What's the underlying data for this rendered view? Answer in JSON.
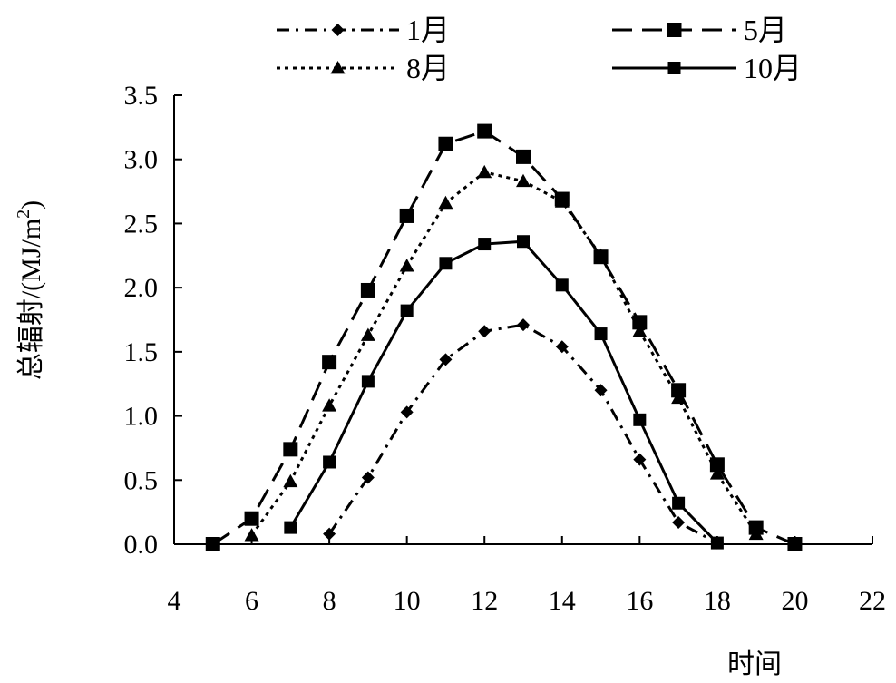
{
  "chart_data": {
    "type": "line",
    "xlabel": "时间",
    "ylabel_main": "总辐射/(MJ/m",
    "ylabel_sup": "2",
    "ylabel_close": ")",
    "xlim": [
      4,
      22
    ],
    "ylim": [
      0,
      3.5
    ],
    "x_ticks": [
      "4",
      "6",
      "8",
      "10",
      "12",
      "14",
      "16",
      "18",
      "20",
      "22"
    ],
    "y_ticks": [
      "0.0",
      "0.5",
      "1.0",
      "1.5",
      "2.0",
      "2.5",
      "3.0",
      "3.5"
    ],
    "grid": false,
    "legend_position": "top",
    "series": [
      {
        "name": "1月",
        "marker": "diamond",
        "line_style": "dash-dot",
        "color": "#000000",
        "points": [
          {
            "x": 8,
            "y": 0.08
          },
          {
            "x": 9,
            "y": 0.52
          },
          {
            "x": 10,
            "y": 1.03
          },
          {
            "x": 11,
            "y": 1.44
          },
          {
            "x": 12,
            "y": 1.66
          },
          {
            "x": 13,
            "y": 1.71
          },
          {
            "x": 14,
            "y": 1.54
          },
          {
            "x": 15,
            "y": 1.2
          },
          {
            "x": 16,
            "y": 0.66
          },
          {
            "x": 17,
            "y": 0.17
          },
          {
            "x": 18,
            "y": 0.01
          }
        ]
      },
      {
        "name": "5月",
        "marker": "square-large",
        "line_style": "dashed",
        "color": "#000000",
        "points": [
          {
            "x": 5,
            "y": 0.0
          },
          {
            "x": 6,
            "y": 0.2
          },
          {
            "x": 7,
            "y": 0.74
          },
          {
            "x": 8,
            "y": 1.42
          },
          {
            "x": 9,
            "y": 1.98
          },
          {
            "x": 10,
            "y": 2.56
          },
          {
            "x": 11,
            "y": 3.12
          },
          {
            "x": 12,
            "y": 3.22
          },
          {
            "x": 13,
            "y": 3.02
          },
          {
            "x": 14,
            "y": 2.69
          },
          {
            "x": 15,
            "y": 2.24
          },
          {
            "x": 16,
            "y": 1.73
          },
          {
            "x": 17,
            "y": 1.2
          },
          {
            "x": 18,
            "y": 0.62
          },
          {
            "x": 19,
            "y": 0.13
          },
          {
            "x": 20,
            "y": 0.0
          }
        ]
      },
      {
        "name": "8月",
        "marker": "triangle",
        "line_style": "dotted",
        "color": "#000000",
        "points": [
          {
            "x": 6,
            "y": 0.07
          },
          {
            "x": 7,
            "y": 0.49
          },
          {
            "x": 8,
            "y": 1.08
          },
          {
            "x": 9,
            "y": 1.63
          },
          {
            "x": 10,
            "y": 2.17
          },
          {
            "x": 11,
            "y": 2.66
          },
          {
            "x": 12,
            "y": 2.9
          },
          {
            "x": 13,
            "y": 2.83
          },
          {
            "x": 14,
            "y": 2.67
          },
          {
            "x": 15,
            "y": 2.25
          },
          {
            "x": 16,
            "y": 1.66
          },
          {
            "x": 17,
            "y": 1.14
          },
          {
            "x": 18,
            "y": 0.55
          },
          {
            "x": 19,
            "y": 0.08
          }
        ]
      },
      {
        "name": "10月",
        "marker": "square-small",
        "line_style": "solid",
        "color": "#000000",
        "points": [
          {
            "x": 7,
            "y": 0.13
          },
          {
            "x": 8,
            "y": 0.64
          },
          {
            "x": 9,
            "y": 1.27
          },
          {
            "x": 10,
            "y": 1.82
          },
          {
            "x": 11,
            "y": 2.19
          },
          {
            "x": 12,
            "y": 2.34
          },
          {
            "x": 13,
            "y": 2.36
          },
          {
            "x": 14,
            "y": 2.02
          },
          {
            "x": 15,
            "y": 1.64
          },
          {
            "x": 16,
            "y": 0.97
          },
          {
            "x": 17,
            "y": 0.32
          },
          {
            "x": 18,
            "y": 0.01
          }
        ]
      }
    ]
  }
}
